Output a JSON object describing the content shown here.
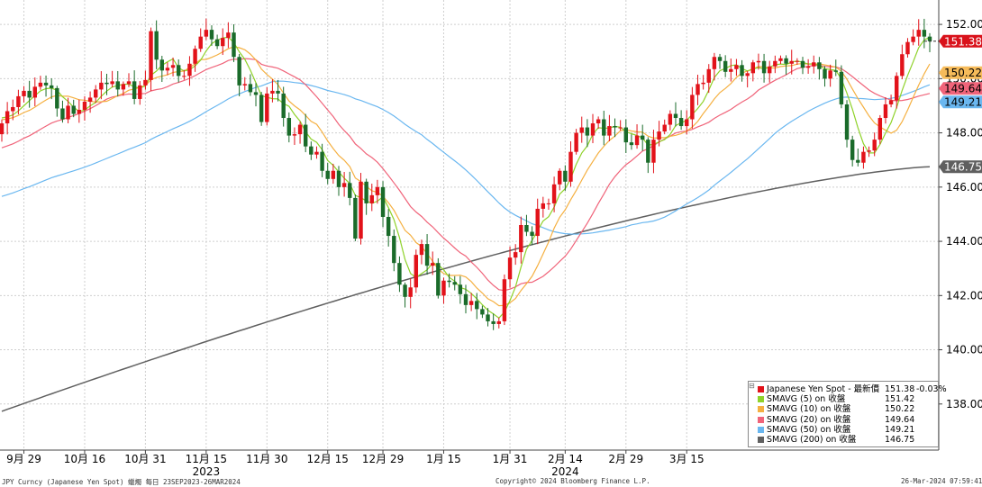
{
  "chart_data": {
    "type": "candlestick",
    "ylim": [
      136.3,
      152.9
    ],
    "y_ticks": [
      {
        "value": 138,
        "label": "138.00"
      },
      {
        "value": 140,
        "label": "140.00"
      },
      {
        "value": 142,
        "label": "142.00"
      },
      {
        "value": 144,
        "label": "144.00"
      },
      {
        "value": 146,
        "label": "146.00"
      },
      {
        "value": 148,
        "label": "148.00"
      },
      {
        "value": 150,
        "label": "150.00"
      },
      {
        "value": 152,
        "label": "152.00"
      }
    ],
    "x_ticks": [
      {
        "index": 4,
        "label": "9月 29"
      },
      {
        "index": 15,
        "label": "10月 16"
      },
      {
        "index": 26,
        "label": "10月 31"
      },
      {
        "index": 37,
        "label": "11月 15"
      },
      {
        "index": 48,
        "label": "11月 30"
      },
      {
        "index": 59,
        "label": "12月 15"
      },
      {
        "index": 69,
        "label": "12月 29"
      },
      {
        "index": 80,
        "label": "1月 15"
      },
      {
        "index": 92,
        "label": "1月 31"
      },
      {
        "index": 102,
        "label": "2月 14"
      },
      {
        "index": 113,
        "label": "2月 29"
      },
      {
        "index": 124,
        "label": "3月 15"
      }
    ],
    "year_labels": [
      {
        "index": 37,
        "label": "2023"
      },
      {
        "index": 102,
        "label": "2024"
      }
    ],
    "closes": [
      148.35,
      148.8,
      148.95,
      149.35,
      149.55,
      149.3,
      149.7,
      149.85,
      149.75,
      149.65,
      148.9,
      148.5,
      149.0,
      148.7,
      148.85,
      149.15,
      149.3,
      149.6,
      149.85,
      149.8,
      149.9,
      149.6,
      149.8,
      149.9,
      149.25,
      149.75,
      149.95,
      151.75,
      150.7,
      150.3,
      150.4,
      150.5,
      150.1,
      150.1,
      150.55,
      151.1,
      151.55,
      151.8,
      151.45,
      151.2,
      151.5,
      151.7,
      150.8,
      149.75,
      149.8,
      149.5,
      149.4,
      148.4,
      149.45,
      149.55,
      149.45,
      148.55,
      147.9,
      147.95,
      148.3,
      147.5,
      147.2,
      147.3,
      146.6,
      146.3,
      146.6,
      146.0,
      146.15,
      145.6,
      144.1,
      146.2,
      145.4,
      145.7,
      146.0,
      144.9,
      144.2,
      143.2,
      142.4,
      141.95,
      142.3,
      143.5,
      143.9,
      143.1,
      143.2,
      142.0,
      142.55,
      142.5,
      142.4,
      142.05,
      141.65,
      141.8,
      141.5,
      141.3,
      141.05,
      140.95,
      141.05,
      142.6,
      143.4,
      143.6,
      144.6,
      144.35,
      144.2,
      145.2,
      145.4,
      145.4,
      146.1,
      146.6,
      146.2,
      147.3,
      148.0,
      148.2,
      147.9,
      148.35,
      148.5,
      147.9,
      148.25,
      148.2,
      148.2,
      147.65,
      147.55,
      147.9,
      147.75,
      146.9,
      147.75,
      148.05,
      148.3,
      148.7,
      148.55,
      148.25,
      148.5,
      149.4,
      149.8,
      149.85,
      150.35,
      150.8,
      150.65,
      150.25,
      150.35,
      150.5,
      150.1,
      150.2,
      150.6,
      150.65,
      150.2,
      150.45,
      150.65,
      150.75,
      150.55,
      150.65,
      150.65,
      150.4,
      150.45,
      150.6,
      150.35,
      150.0,
      150.3,
      150.25,
      149.05,
      147.75,
      147.0,
      146.9,
      147.3,
      147.35,
      147.75,
      148.55,
      149.05,
      149.2,
      150.1,
      150.9,
      151.35,
      151.55,
      151.8,
      151.55,
      151.38
    ],
    "last_price_label": "151.38",
    "series": [
      {
        "name": "Japanese Yen Spot - 最新價",
        "color": "#e2121a",
        "last_label": "151.38",
        "change_label": "-0.03%"
      },
      {
        "name": "SMAVG (5)  on 收盤",
        "color": "#8fd22a",
        "last_label": "151.42"
      },
      {
        "name": "SMAVG (10)  on 收盤",
        "color": "#f5b041",
        "last_label": "150.22"
      },
      {
        "name": "SMAVG (20)  on 收盤",
        "color": "#f0647a",
        "last_label": "149.64"
      },
      {
        "name": "SMAVG (50)  on 收盤",
        "color": "#6ab7f0",
        "last_label": "149.21"
      },
      {
        "name": "SMAVG (200)  on 收盤",
        "color": "#606060",
        "last_label": "146.75"
      }
    ],
    "ma200": {
      "start": 137.73,
      "end": 146.75
    },
    "up_color": "#e2121a",
    "down_color": "#1a6b2a",
    "grid": true
  },
  "footer": {
    "left": "JPY Curncy (Japanese Yen Spot) 蠟燭  每日 23SEP2023-26MAR2024",
    "center": "Copyright© 2024 Bloomberg Finance L.P.",
    "right": "26-Mar-2024 07:59:41"
  }
}
